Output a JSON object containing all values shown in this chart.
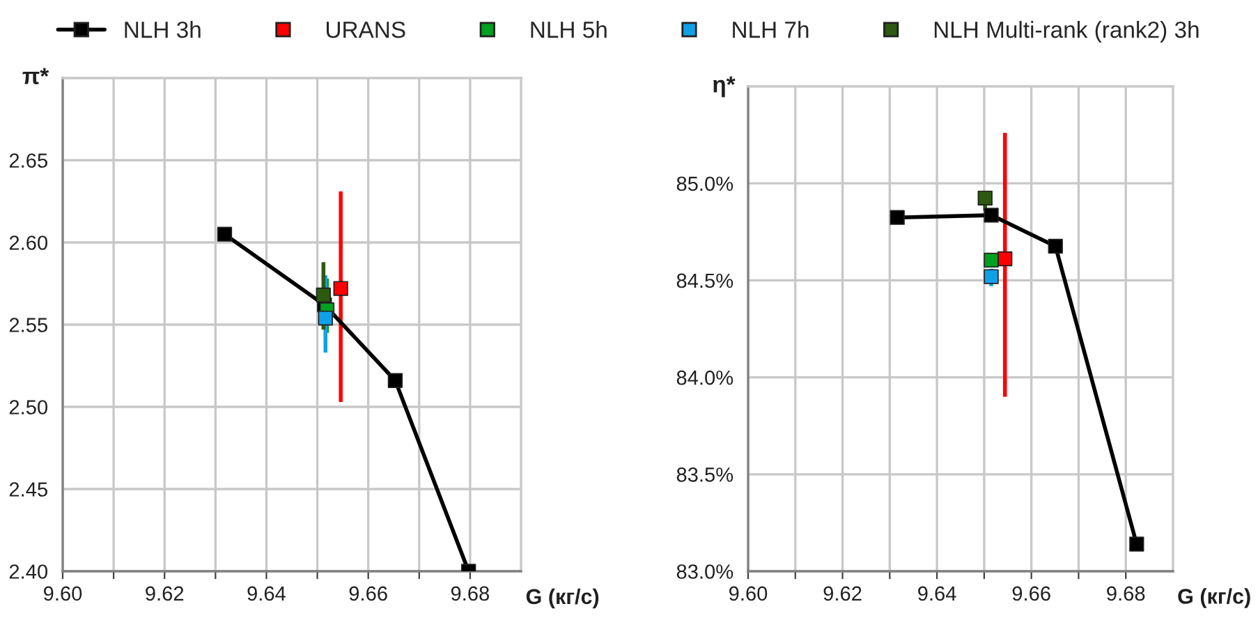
{
  "chart_data": [
    {
      "type": "scatter",
      "xlabel": "G (кг/с)",
      "ylabel": "π*",
      "legend": "top",
      "grid": true,
      "marker": "square",
      "xlim": [
        9.6,
        9.69
      ],
      "ylim": [
        2.4,
        2.7
      ],
      "xticks": [
        {
          "value": 9.6,
          "label": "9.60"
        },
        {
          "value": 9.61,
          "label": null
        },
        {
          "value": 9.62,
          "label": "9.62"
        },
        {
          "value": 9.63,
          "label": null
        },
        {
          "value": 9.64,
          "label": "9.64"
        },
        {
          "value": 9.65,
          "label": null
        },
        {
          "value": 9.66,
          "label": "9.66"
        },
        {
          "value": 9.67,
          "label": null
        },
        {
          "value": 9.68,
          "label": "9.68"
        }
      ],
      "yticks": [
        {
          "value": 2.4,
          "label": "2.40"
        },
        {
          "value": 2.45,
          "label": "2.45"
        },
        {
          "value": 2.5,
          "label": "2.50"
        },
        {
          "value": 2.55,
          "label": "2.55"
        },
        {
          "value": 2.6,
          "label": "2.60"
        },
        {
          "value": 2.65,
          "label": "2.65"
        }
      ],
      "series": [
        {
          "name": "NLH 3h",
          "type": "line",
          "color": "#000000",
          "x": [
            9.6318,
            9.6514,
            9.6653,
            9.6797
          ],
          "values": [
            2.605,
            2.562,
            2.516,
            2.4
          ]
        },
        {
          "name": "URANS",
          "color": "#ff0000",
          "x": [
            9.6546
          ],
          "values": [
            2.572
          ],
          "errors": [
            [
              2.503,
              2.631
            ]
          ]
        },
        {
          "name": "NLH 5h",
          "color": "#00a020",
          "x": [
            9.6519
          ],
          "values": [
            2.559
          ],
          "errors": [
            [
              2.545,
              2.578
            ]
          ]
        },
        {
          "name": "NLH 7h",
          "color": "#10a0e8",
          "x": [
            9.6516
          ],
          "values": [
            2.554
          ],
          "errors": [
            [
              2.533,
              2.58
            ]
          ]
        },
        {
          "name": "NLH Multi-rank (rank2) 3h",
          "color": "#2d5a10",
          "x": [
            9.6512
          ],
          "values": [
            2.568
          ],
          "errors": [
            [
              2.547,
              2.588
            ]
          ]
        }
      ]
    },
    {
      "type": "scatter",
      "xlabel": "G (кг/с)",
      "ylabel": "η*",
      "legend": "top",
      "grid": true,
      "marker": "square",
      "xlim": [
        9.6,
        9.69
      ],
      "ylim": [
        83.0,
        85.5
      ],
      "xticks": [
        {
          "value": 9.6,
          "label": "9.60"
        },
        {
          "value": 9.61,
          "label": null
        },
        {
          "value": 9.62,
          "label": "9.62"
        },
        {
          "value": 9.63,
          "label": null
        },
        {
          "value": 9.64,
          "label": "9.64"
        },
        {
          "value": 9.65,
          "label": null
        },
        {
          "value": 9.66,
          "label": "9.66"
        },
        {
          "value": 9.67,
          "label": null
        },
        {
          "value": 9.68,
          "label": "9.68"
        }
      ],
      "yticks": [
        {
          "value": 83.0,
          "label": "83.0%"
        },
        {
          "value": 83.5,
          "label": "83.5%"
        },
        {
          "value": 84.0,
          "label": "84.0%"
        },
        {
          "value": 84.5,
          "label": "84.5%"
        },
        {
          "value": 85.0,
          "label": "85.0%"
        }
      ],
      "series": [
        {
          "name": "NLH 3h",
          "type": "line",
          "color": "#000000",
          "x": [
            9.6316,
            9.6515,
            9.6651,
            9.6823
          ],
          "values": [
            84.824,
            84.836,
            84.676,
            83.14
          ]
        },
        {
          "name": "URANS",
          "color": "#ff0000",
          "x": [
            9.6544
          ],
          "values": [
            84.611
          ],
          "errors": [
            [
              83.9,
              85.26
            ]
          ]
        },
        {
          "name": "NLH 5h",
          "color": "#00a020",
          "x": [
            9.6515
          ],
          "values": [
            84.604
          ]
        },
        {
          "name": "NLH 7h",
          "color": "#10a0e8",
          "x": [
            9.6515
          ],
          "values": [
            84.519
          ],
          "errors": [
            [
              84.47,
              84.56
            ]
          ]
        },
        {
          "name": "NLH Multi-rank (rank2) 3h",
          "color": "#2d5a10",
          "x": [
            9.6502
          ],
          "values": [
            84.924
          ],
          "errors": [
            [
              84.86,
              84.96
            ]
          ]
        }
      ]
    }
  ]
}
